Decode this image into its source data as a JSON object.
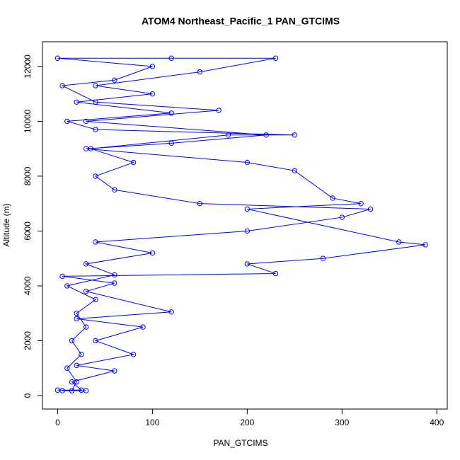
{
  "chart_data": {
    "type": "line",
    "title": "ATOM4 Northeast_Pacific_1 PAN_GTCIMS",
    "x_label": "PAN_GTCIMS",
    "y_label": "Altitude (m)",
    "xlim": [
      -16,
      411
    ],
    "ylim": [
      -490,
      12900
    ],
    "xticks": [
      0,
      100,
      200,
      300,
      400
    ],
    "yticks": [
      0,
      2000,
      4000,
      6000,
      8000,
      10000,
      12000
    ],
    "grid": false,
    "marker": "open-circle",
    "series": [
      {
        "color": "#0000ff",
        "x": [
          30,
          5,
          15,
          20,
          10,
          25,
          15,
          30,
          20,
          40,
          10,
          60,
          30,
          100,
          40,
          200,
          300,
          330,
          150,
          60,
          40,
          80,
          35,
          180,
          250,
          40,
          10,
          120,
          20,
          100,
          40,
          150,
          230,
          120,
          0,
          100,
          60,
          5,
          40,
          170,
          30,
          220,
          120,
          30,
          200,
          250,
          290,
          320,
          200,
          360,
          388,
          280,
          200,
          230,
          5,
          60,
          30,
          120,
          20,
          90,
          40,
          80,
          20,
          60,
          15,
          25,
          0
        ],
        "values": [
          180,
          180,
          180,
          500,
          1000,
          1500,
          2000,
          2500,
          3000,
          3500,
          4000,
          4400,
          4800,
          5200,
          5600,
          6000,
          6500,
          6800,
          7000,
          7500,
          8000,
          8500,
          9000,
          9500,
          9500,
          9700,
          10000,
          10300,
          10700,
          11000,
          11300,
          11800,
          12300,
          12300,
          12300,
          12000,
          11500,
          11300,
          10700,
          10400,
          10000,
          9500,
          9200,
          9000,
          8500,
          8200,
          7200,
          7000,
          6800,
          5600,
          5500,
          5000,
          4800,
          4450,
          4350,
          4100,
          3800,
          3050,
          2800,
          2500,
          2000,
          1500,
          1100,
          900,
          500,
          200,
          200
        ]
      }
    ]
  }
}
